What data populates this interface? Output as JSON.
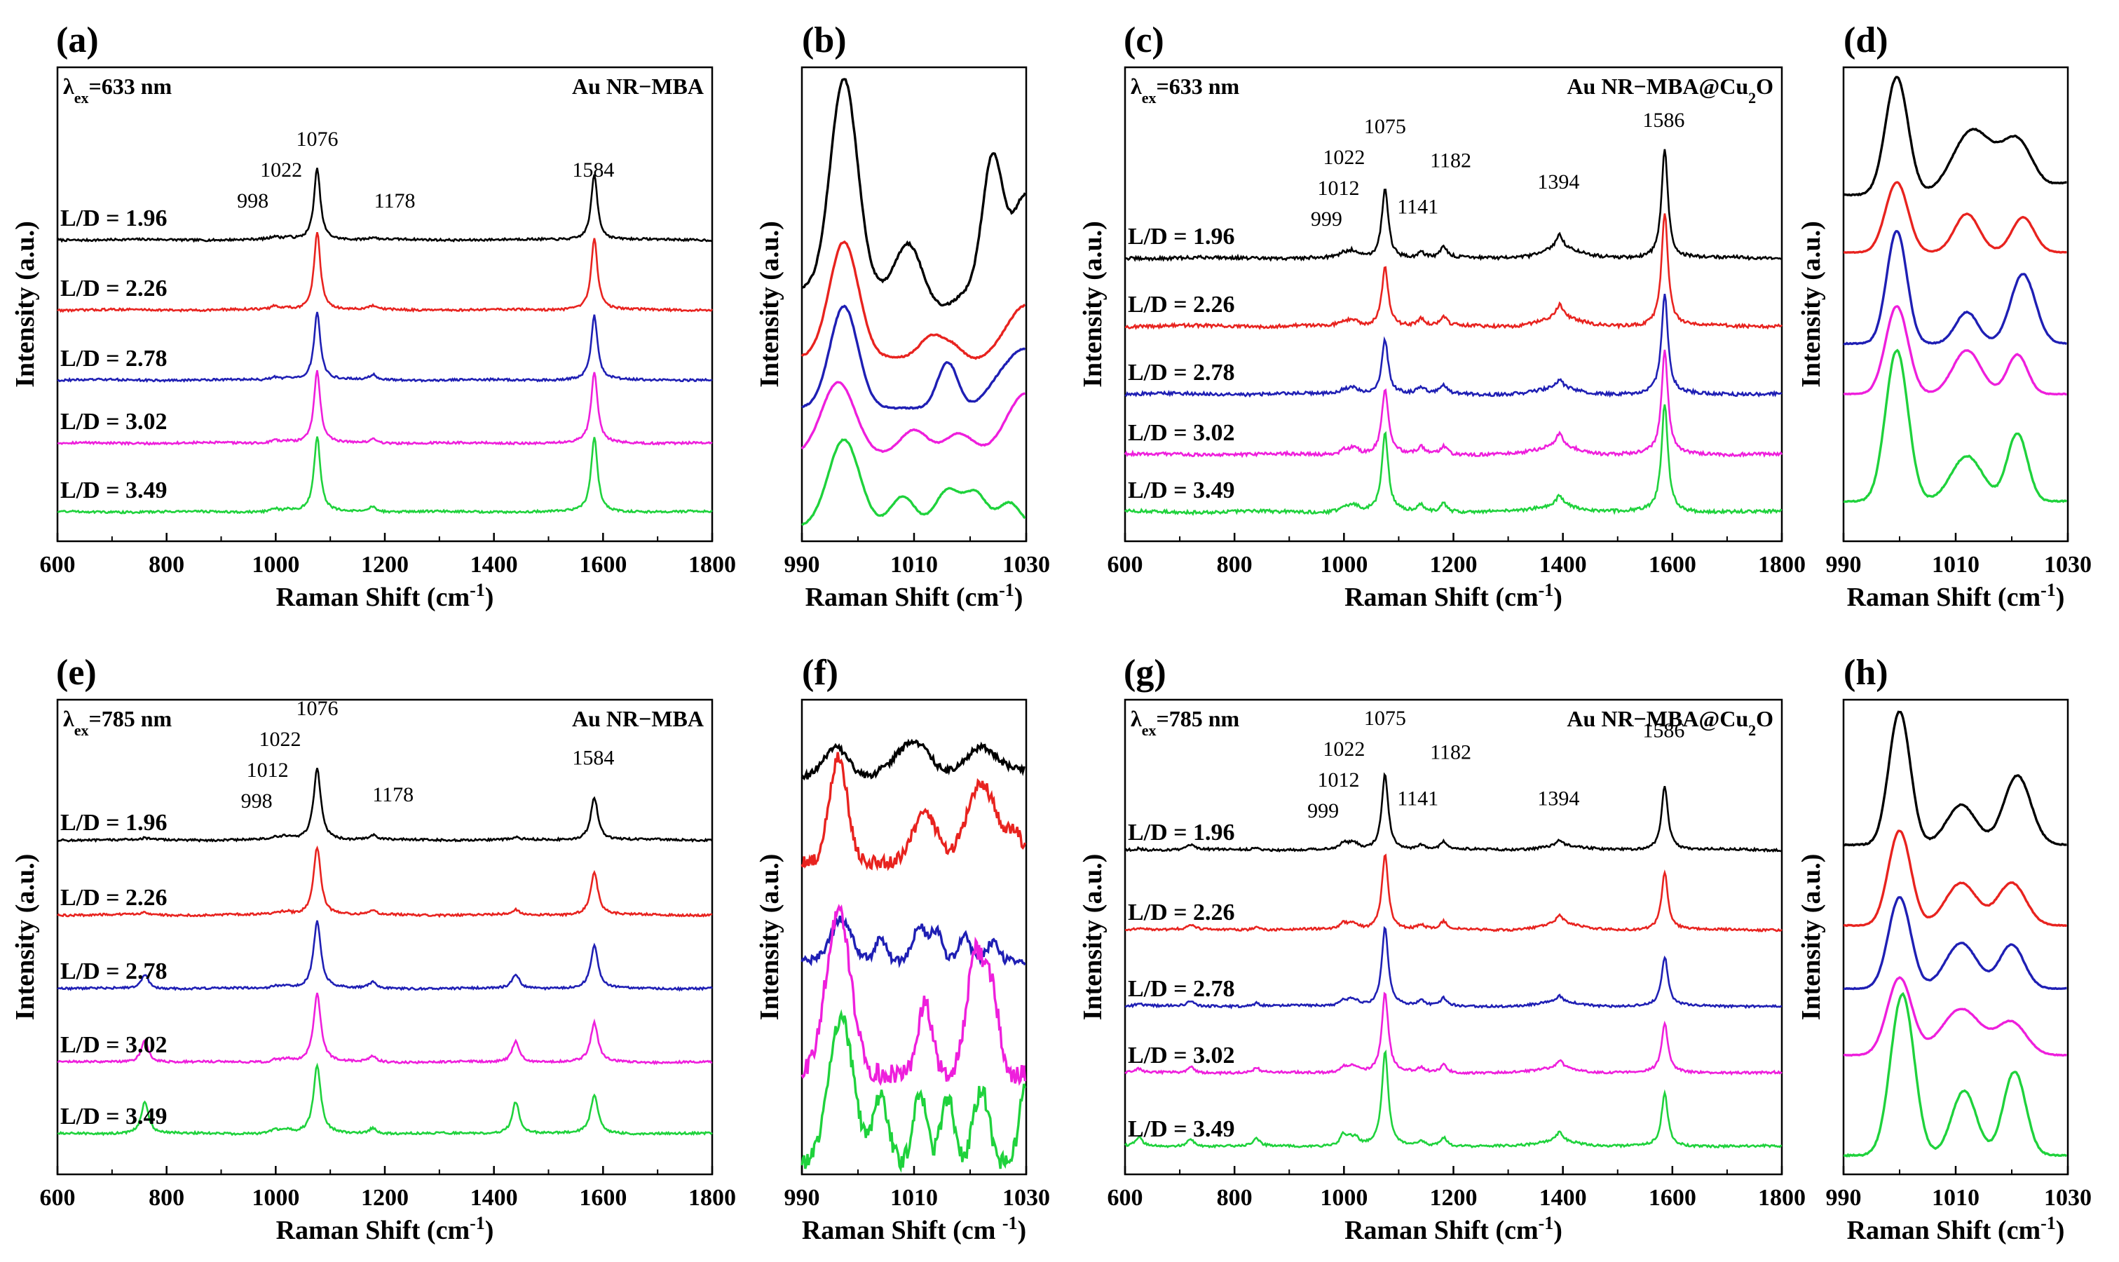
{
  "colors": [
    "#000000",
    "#e8231f",
    "#1f1fb4",
    "#ee1fdc",
    "#1fd23c"
  ],
  "series_names": [
    "L/D = 1.96",
    "L/D = 2.26",
    "L/D = 2.78",
    "L/D = 3.02",
    "L/D = 3.49"
  ],
  "chart_data": [
    {
      "panel": "(a)",
      "type": "line",
      "xlabel": "Raman Shift (cm⁻¹)",
      "ylabel": "Intensity (a.u.)",
      "xlim": [
        600,
        1800
      ],
      "xticks": [
        600,
        800,
        1000,
        1200,
        1400,
        1600,
        1800
      ],
      "excitation": "633 nm",
      "sample": "Au NR−MBA",
      "series": [
        "L/D = 1.96",
        "L/D = 2.26",
        "L/D = 2.78",
        "L/D = 3.02",
        "L/D = 3.49"
      ],
      "peaks": [
        998,
        1022,
        1076,
        1178,
        1584
      ],
      "peak_heights": [
        [
          0.04,
          0.03,
          1.0,
          0.03,
          0.92
        ],
        [
          0.05,
          0.03,
          1.1,
          0.05,
          1.0
        ],
        [
          0.04,
          0.03,
          0.95,
          0.07,
          0.9
        ],
        [
          0.05,
          0.03,
          1.0,
          0.06,
          1.0
        ],
        [
          0.05,
          0.03,
          1.05,
          0.08,
          1.05
        ]
      ],
      "peak_labels": [
        {
          "text": "998",
          "x": 958,
          "level": 0
        },
        {
          "text": "1022",
          "x": 1010,
          "level": 1
        },
        {
          "text": "1076",
          "x": 1076,
          "level": 2
        },
        {
          "text": "1178",
          "x": 1218,
          "level": 0
        },
        {
          "text": "1584",
          "x": 1582,
          "level": 1
        }
      ]
    },
    {
      "panel": "(b)",
      "type": "line",
      "xlabel": "Raman Shift (cm⁻¹)",
      "ylabel": "Intensity (a.u.)",
      "xlim": [
        990,
        1030
      ],
      "xticks": [
        990,
        1010,
        1030
      ],
      "series": [
        "L/D = 1.96",
        "L/D = 2.26",
        "L/D = 2.78",
        "L/D = 3.02",
        "L/D = 3.49"
      ]
    },
    {
      "panel": "(c)",
      "type": "line",
      "xlabel": "Raman Shift (cm⁻¹)",
      "ylabel": "Intensity (a.u.)",
      "xlim": [
        600,
        1800
      ],
      "xticks": [
        600,
        800,
        1000,
        1200,
        1400,
        1600,
        1800
      ],
      "excitation": "633 nm",
      "sample": "Au NR−MBA@Cu₂O",
      "series": [
        "L/D = 1.96",
        "L/D = 2.26",
        "L/D = 2.78",
        "L/D = 3.02",
        "L/D = 3.49"
      ],
      "peaks": [
        999,
        1012,
        1022,
        1075,
        1141,
        1182,
        1394,
        1586
      ],
      "peak_heights": [
        [
          0.04,
          0.04,
          0.04,
          0.65,
          0.06,
          0.1,
          0.14,
          1.0
        ],
        [
          0.04,
          0.04,
          0.04,
          0.55,
          0.06,
          0.08,
          0.12,
          1.05
        ],
        [
          0.04,
          0.04,
          0.04,
          0.5,
          0.06,
          0.08,
          0.08,
          0.92
        ],
        [
          0.04,
          0.04,
          0.04,
          0.6,
          0.06,
          0.08,
          0.12,
          0.95
        ],
        [
          0.04,
          0.04,
          0.04,
          0.72,
          0.06,
          0.08,
          0.1,
          1.0
        ]
      ],
      "peak_labels": [
        {
          "text": "999",
          "x": 968,
          "level": 0
        },
        {
          "text": "1012",
          "x": 990,
          "level": 1
        },
        {
          "text": "1022",
          "x": 1000,
          "level": 2
        },
        {
          "text": "1075",
          "x": 1075,
          "level": 3
        },
        {
          "text": "1141",
          "x": 1135,
          "level": 0.4
        },
        {
          "text": "1182",
          "x": 1195,
          "level": 1.9
        },
        {
          "text": "1394",
          "x": 1392,
          "level": 1.2
        },
        {
          "text": "1586",
          "x": 1584,
          "level": 3.2
        }
      ]
    },
    {
      "panel": "(d)",
      "type": "line",
      "xlabel": "Raman Shift (cm⁻¹)",
      "ylabel": "Intensity (a.u.)",
      "xlim": [
        990,
        1030
      ],
      "xticks": [
        990,
        1010,
        1030
      ],
      "series": [
        "L/D = 1.96",
        "L/D = 2.26",
        "L/D = 2.78",
        "L/D = 3.02",
        "L/D = 3.49"
      ]
    },
    {
      "panel": "(e)",
      "type": "line",
      "xlabel": "Raman Shift (cm⁻¹)",
      "ylabel": "Intensity (a.u.)",
      "xlim": [
        600,
        1800
      ],
      "xticks": [
        600,
        800,
        1000,
        1200,
        1400,
        1600,
        1800
      ],
      "excitation": "785 nm",
      "sample": "Au NR−MBA",
      "series": [
        "L/D = 1.96",
        "L/D = 2.26",
        "L/D = 2.78",
        "L/D = 3.02",
        "L/D = 3.49"
      ],
      "peaks": [
        760,
        998,
        1012,
        1022,
        1076,
        1178,
        1440,
        1584
      ],
      "peak_heights": [
        [
          0.02,
          0.02,
          0.02,
          0.03,
          1.0,
          0.06,
          0.03,
          0.6
        ],
        [
          0.04,
          0.02,
          0.02,
          0.03,
          0.95,
          0.05,
          0.07,
          0.6
        ],
        [
          0.2,
          0.03,
          0.02,
          0.03,
          0.95,
          0.08,
          0.2,
          0.6
        ],
        [
          0.3,
          0.03,
          0.02,
          0.03,
          0.95,
          0.08,
          0.3,
          0.55
        ],
        [
          0.45,
          0.05,
          0.03,
          0.04,
          0.95,
          0.08,
          0.45,
          0.55
        ]
      ],
      "peak_labels": [
        {
          "text": "998",
          "x": 965,
          "level": 0
        },
        {
          "text": "1012",
          "x": 985,
          "level": 1
        },
        {
          "text": "1022",
          "x": 1008,
          "level": 2
        },
        {
          "text": "1076",
          "x": 1076,
          "level": 3
        },
        {
          "text": "1178",
          "x": 1215,
          "level": 0.2
        },
        {
          "text": "1584",
          "x": 1582,
          "level": 1.4
        }
      ]
    },
    {
      "panel": "(f)",
      "type": "line",
      "xlabel": "Raman Shift (cm ⁻¹)",
      "ylabel": "Intensity (a.u.)",
      "xlim": [
        990,
        1030
      ],
      "xticks": [
        990,
        1010,
        1030
      ],
      "series": [
        "L/D = 1.96",
        "L/D = 2.26",
        "L/D = 2.78",
        "L/D = 3.02",
        "L/D = 3.49"
      ]
    },
    {
      "panel": "(g)",
      "type": "line",
      "xlabel": "Raman Shift (cm⁻¹)",
      "ylabel": "Intensity (a.u.)",
      "xlim": [
        600,
        1800
      ],
      "xticks": [
        600,
        800,
        1000,
        1200,
        1400,
        1600,
        1800
      ],
      "excitation": "785 nm",
      "sample": "Au NR−MBA@Cu₂O",
      "series": [
        "L/D = 1.96",
        "L/D = 2.26",
        "L/D = 2.78",
        "L/D = 3.02",
        "L/D = 3.49"
      ],
      "peaks": [
        625,
        720,
        840,
        999,
        1012,
        1022,
        1075,
        1141,
        1182,
        1394,
        1586
      ],
      "peak_heights": [
        [
          0.02,
          0.06,
          0.03,
          0.08,
          0.06,
          0.05,
          1.0,
          0.06,
          0.1,
          0.08,
          0.85
        ],
        [
          0.03,
          0.06,
          0.04,
          0.08,
          0.06,
          0.05,
          1.0,
          0.06,
          0.1,
          0.12,
          0.75
        ],
        [
          0.03,
          0.06,
          0.04,
          0.08,
          0.06,
          0.05,
          1.05,
          0.06,
          0.1,
          0.08,
          0.65
        ],
        [
          0.05,
          0.08,
          0.06,
          0.08,
          0.06,
          0.05,
          1.05,
          0.06,
          0.1,
          0.1,
          0.65
        ],
        [
          0.12,
          0.1,
          0.1,
          0.15,
          0.08,
          0.08,
          1.25,
          0.06,
          0.12,
          0.12,
          0.7
        ]
      ],
      "peak_labels": [
        {
          "text": "999",
          "x": 962,
          "level": 0
        },
        {
          "text": "1012",
          "x": 990,
          "level": 1
        },
        {
          "text": "1022",
          "x": 1000,
          "level": 2
        },
        {
          "text": "1075",
          "x": 1075,
          "level": 3
        },
        {
          "text": "1141",
          "x": 1135,
          "level": 0.4
        },
        {
          "text": "1182",
          "x": 1195,
          "level": 1.9
        },
        {
          "text": "1394",
          "x": 1392,
          "level": 0.4
        },
        {
          "text": "1586",
          "x": 1584,
          "level": 2.6
        }
      ]
    },
    {
      "panel": "(h)",
      "type": "line",
      "xlabel": "Raman Shift (cm⁻¹)",
      "ylabel": "Intensity (a.u.)",
      "xlim": [
        990,
        1030
      ],
      "xticks": [
        990,
        1010,
        1030
      ],
      "series": [
        "L/D = 1.96",
        "L/D = 2.26",
        "L/D = 2.78",
        "L/D = 3.02",
        "L/D = 3.49"
      ]
    }
  ]
}
